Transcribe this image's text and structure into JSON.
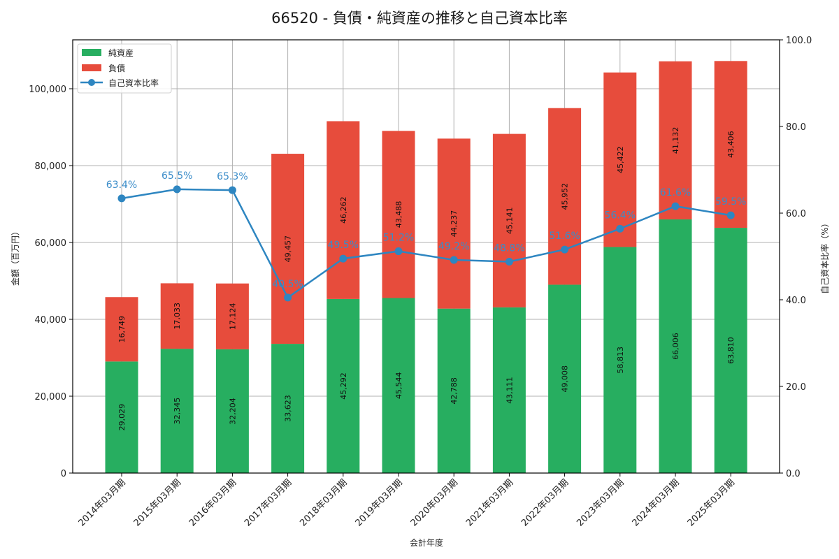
{
  "chart_data": {
    "type": "bar",
    "title": "66520 - 負債・純資産の推移と自己資本比率",
    "xlabel": "会計年度",
    "ylabel": "金額（百万円）",
    "y2label": "自己資本比率（%）",
    "ylim": [
      0,
      112727
    ],
    "y2lim": [
      0,
      100
    ],
    "yticks": [
      0,
      20000,
      40000,
      60000,
      80000,
      100000
    ],
    "ytick_labels": [
      "0",
      "20,000",
      "40,000",
      "60,000",
      "80,000",
      "100,000"
    ],
    "y2ticks": [
      0,
      20,
      40,
      60,
      80,
      100
    ],
    "y2tick_labels": [
      "0.0",
      "20.0",
      "40.0",
      "60.0",
      "80.0",
      "100.0"
    ],
    "grid": true,
    "legend_position": "upper left",
    "categories": [
      "2014年03月期",
      "2015年03月期",
      "2016年03月期",
      "2017年03月期",
      "2018年03月期",
      "2019年03月期",
      "2020年03月期",
      "2021年03月期",
      "2022年03月期",
      "2023年03月期",
      "2024年03月期",
      "2025年03月期"
    ],
    "series": [
      {
        "name": "純資産",
        "type": "bar",
        "stack": "total",
        "color": "#27ae60",
        "values": [
          29029,
          32345,
          32204,
          33623,
          45292,
          45544,
          42788,
          43111,
          49008,
          58813,
          66006,
          63810
        ],
        "labels": [
          "29,029",
          "32,345",
          "32,204",
          "33,623",
          "45,292",
          "45,544",
          "42,788",
          "43,111",
          "49,008",
          "58,813",
          "66,006",
          "63,810"
        ]
      },
      {
        "name": "負債",
        "type": "bar",
        "stack": "total",
        "color": "#e74c3c",
        "values": [
          16749,
          17033,
          17124,
          49457,
          46262,
          43488,
          44237,
          45141,
          45952,
          45422,
          41132,
          43406
        ],
        "labels": [
          "16,749",
          "17,033",
          "17,124",
          "49,457",
          "46,262",
          "43,488",
          "44,237",
          "45,141",
          "45,952",
          "45,422",
          "41,132",
          "43,406"
        ]
      },
      {
        "name": "自己資本比率",
        "type": "line",
        "axis": "right",
        "color": "#2e86c1",
        "values": [
          63.4,
          65.5,
          65.3,
          40.5,
          49.5,
          51.2,
          49.2,
          48.8,
          51.6,
          56.4,
          61.6,
          59.5
        ],
        "labels": [
          "63.4%",
          "65.5%",
          "65.3%",
          "40.5%",
          "49.5%",
          "51.2%",
          "49.2%",
          "48.8%",
          "51.6%",
          "56.4%",
          "61.6%",
          "59.5%"
        ]
      }
    ]
  }
}
